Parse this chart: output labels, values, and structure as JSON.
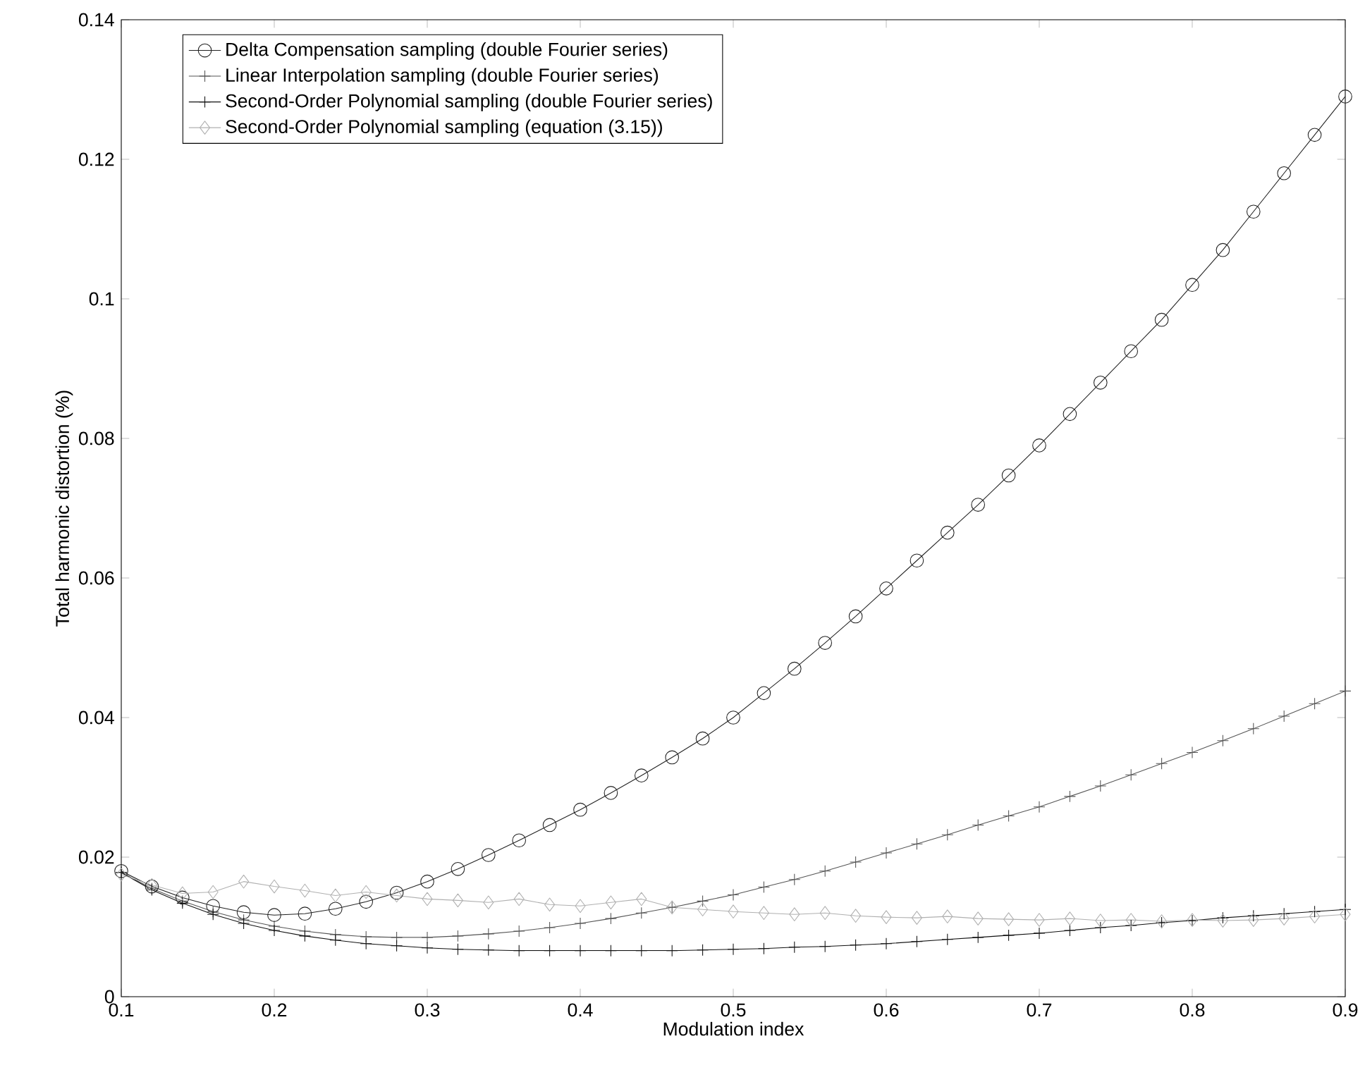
{
  "chart_data": {
    "type": "line",
    "xlabel": "Modulation index",
    "ylabel": "Total harmonic distortion (%)",
    "x": [
      0.1,
      0.12,
      0.14,
      0.16,
      0.18,
      0.2,
      0.22,
      0.24,
      0.26,
      0.28,
      0.3,
      0.32,
      0.34,
      0.36,
      0.38,
      0.4,
      0.42,
      0.44,
      0.46,
      0.48,
      0.5,
      0.52,
      0.54,
      0.56,
      0.58,
      0.6,
      0.62,
      0.64,
      0.66,
      0.68,
      0.7,
      0.72,
      0.74,
      0.76,
      0.78,
      0.8,
      0.82,
      0.84,
      0.86,
      0.88,
      0.9
    ],
    "series": [
      {
        "name": "Delta Compensation sampling (double Fourier series)",
        "color": "#222222",
        "marker": "circle",
        "values": [
          0.018,
          0.0158,
          0.0142,
          0.013,
          0.0121,
          0.0117,
          0.0119,
          0.0126,
          0.0136,
          0.0149,
          0.0165,
          0.0183,
          0.0203,
          0.0224,
          0.0246,
          0.0268,
          0.0292,
          0.0317,
          0.0343,
          0.037,
          0.04,
          0.0435,
          0.047,
          0.0507,
          0.0545,
          0.0585,
          0.0625,
          0.0665,
          0.0705,
          0.0747,
          0.079,
          0.0835,
          0.088,
          0.0925,
          0.097,
          0.102,
          0.107,
          0.1125,
          0.118,
          0.1235,
          0.129
        ]
      },
      {
        "name": "Linear Interpolation sampling (double Fourier series)",
        "color": "#555555",
        "marker": "cross",
        "values": [
          0.0178,
          0.0155,
          0.0137,
          0.0122,
          0.011,
          0.0101,
          0.0094,
          0.0089,
          0.0086,
          0.0085,
          0.0085,
          0.0087,
          0.009,
          0.0094,
          0.0099,
          0.0105,
          0.0112,
          0.012,
          0.0128,
          0.0137,
          0.0146,
          0.0157,
          0.0168,
          0.018,
          0.0193,
          0.0206,
          0.0219,
          0.0232,
          0.0246,
          0.0259,
          0.0272,
          0.0287,
          0.0302,
          0.0318,
          0.0334,
          0.035,
          0.0367,
          0.0384,
          0.0402,
          0.042,
          0.0438
        ]
      },
      {
        "name": "Second-Order Polynomial sampling (double Fourier series)",
        "color": "#111111",
        "marker": "cross",
        "values": [
          0.0178,
          0.0153,
          0.0134,
          0.0118,
          0.0105,
          0.0095,
          0.0087,
          0.0081,
          0.0076,
          0.0073,
          0.007,
          0.0068,
          0.0067,
          0.0066,
          0.0066,
          0.0066,
          0.0066,
          0.0066,
          0.0066,
          0.0067,
          0.0068,
          0.0069,
          0.0071,
          0.0072,
          0.0074,
          0.0076,
          0.0079,
          0.0082,
          0.0085,
          0.0088,
          0.0091,
          0.0095,
          0.0099,
          0.0102,
          0.0106,
          0.0109,
          0.0113,
          0.0116,
          0.0119,
          0.0122,
          0.0125
        ]
      },
      {
        "name": "Second-Order Polynomial sampling (equation (3.15))",
        "color": "#b0b0b0",
        "marker": "diamond",
        "values": [
          0.0175,
          0.016,
          0.0148,
          0.015,
          0.0165,
          0.0158,
          0.0152,
          0.0145,
          0.015,
          0.0145,
          0.014,
          0.0138,
          0.0135,
          0.014,
          0.0132,
          0.013,
          0.0135,
          0.014,
          0.0128,
          0.0125,
          0.0122,
          0.012,
          0.0118,
          0.012,
          0.0116,
          0.0114,
          0.0113,
          0.0115,
          0.0112,
          0.0111,
          0.011,
          0.0112,
          0.0109,
          0.011,
          0.0108,
          0.011,
          0.0109,
          0.011,
          0.0112,
          0.0115,
          0.0118
        ]
      }
    ],
    "xlim": [
      0.1,
      0.9
    ],
    "ylim": [
      0,
      0.14
    ],
    "xticks": [
      0.1,
      0.2,
      0.3,
      0.4,
      0.5,
      0.6,
      0.7,
      0.8,
      0.9
    ],
    "yticks": [
      0,
      0.02,
      0.04,
      0.06,
      0.08,
      0.1,
      0.12,
      0.14
    ],
    "grid": false,
    "legend": "top left",
    "line_style": "solid"
  }
}
